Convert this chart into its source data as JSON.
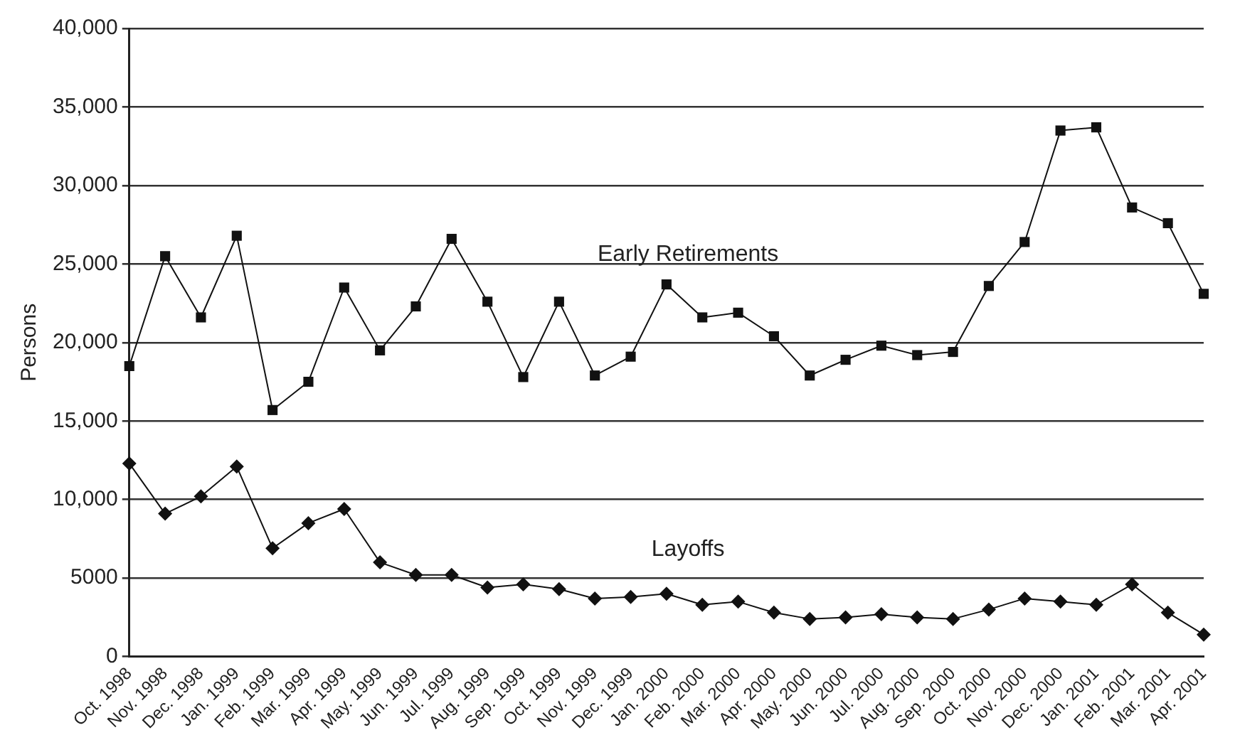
{
  "chart_data": {
    "type": "line",
    "ylabel": "Persons",
    "categories": [
      "Oct. 1998",
      "Nov. 1998",
      "Dec. 1998",
      "Jan. 1999",
      "Feb. 1999",
      "Mar. 1999",
      "Apr. 1999",
      "May. 1999",
      "Jun. 1999",
      "Jul. 1999",
      "Aug. 1999",
      "Sep. 1999",
      "Oct. 1999",
      "Nov. 1999",
      "Dec. 1999",
      "Jan. 2000",
      "Feb. 2000",
      "Mar. 2000",
      "Apr. 2000",
      "May. 2000",
      "Jun. 2000",
      "Jul. 2000",
      "Aug. 2000",
      "Sep. 2000",
      "Oct. 2000",
      "Nov. 2000",
      "Dec. 2000",
      "Jan. 2001",
      "Feb. 2001",
      "Mar. 2001",
      "Apr. 2001"
    ],
    "series": [
      {
        "name": "Early Retirements",
        "color": "#111111",
        "marker": "square",
        "values": [
          18500,
          25500,
          21600,
          26800,
          15700,
          17500,
          23500,
          19500,
          22300,
          26600,
          22600,
          17800,
          22600,
          17900,
          19100,
          23700,
          21600,
          21900,
          20400,
          17900,
          18900,
          19800,
          19200,
          19400,
          23600,
          26400,
          33500,
          33700,
          28600,
          27600,
          23100
        ]
      },
      {
        "name": "Layoffs",
        "color": "#111111",
        "marker": "diamond",
        "values": [
          12300,
          9100,
          10200,
          12100,
          6900,
          8500,
          9400,
          6000,
          5200,
          5200,
          4400,
          4600,
          4300,
          3700,
          3800,
          4000,
          3300,
          3500,
          2800,
          2400,
          2500,
          2700,
          2500,
          2400,
          3000,
          3700,
          3500,
          3300,
          4600,
          2800,
          1400
        ]
      }
    ],
    "ylim": [
      0,
      40000
    ],
    "yticks": [
      0,
      5000,
      {
        "value": 10000,
        "label": "10,000"
      },
      {
        "value": 15000,
        "label": "15,000"
      },
      {
        "value": 20000,
        "label": "20,000"
      },
      {
        "value": 25000,
        "label": "25,000"
      },
      {
        "value": 30000,
        "label": "30,000"
      },
      {
        "value": 35000,
        "label": "35,000"
      },
      {
        "value": 40000,
        "label": "40,000"
      }
    ],
    "grid": "y",
    "legend": false,
    "line_style": "solid"
  }
}
